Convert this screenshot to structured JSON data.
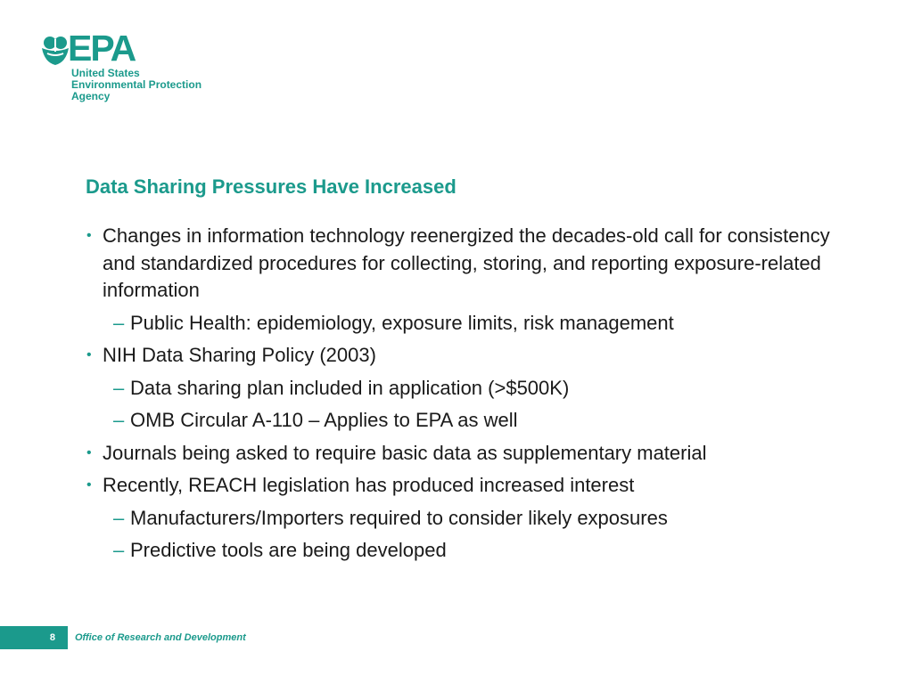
{
  "brand": {
    "wordmark": "EPA",
    "subtitle_lines": [
      "United States",
      "Environmental Protection",
      "Agency"
    ],
    "color": "#1b9a8c",
    "icon": "epa-flower-logo-icon"
  },
  "slide": {
    "title": "Data Sharing Pressures Have Increased",
    "items": [
      {
        "level": 1,
        "marker": "•",
        "text": "Changes in information technology reenergized the decades-old call for consistency and standardized procedures for collecting, storing, and reporting exposure-related information"
      },
      {
        "level": 2,
        "marker": "–",
        "text": "Public Health: epidemiology, exposure limits, risk management"
      },
      {
        "level": 1,
        "marker": "•",
        "text": "NIH Data Sharing Policy (2003)"
      },
      {
        "level": 2,
        "marker": "–",
        "text": "Data sharing plan included in application (>$500K)"
      },
      {
        "level": 2,
        "marker": "–",
        "text": "OMB Circular A-110 – Applies to EPA as well"
      },
      {
        "level": 1,
        "marker": "•",
        "text": "Journals being asked to require basic data as supplementary material"
      },
      {
        "level": 1,
        "marker": "•",
        "text": "Recently, REACH legislation has produced increased interest"
      },
      {
        "level": 2,
        "marker": "–",
        "text": "Manufacturers/Importers required to consider likely exposures"
      },
      {
        "level": 2,
        "marker": "–",
        "text": "Predictive tools are being developed"
      }
    ]
  },
  "footer": {
    "page_number": "8",
    "office": "Office of Research and Development"
  }
}
